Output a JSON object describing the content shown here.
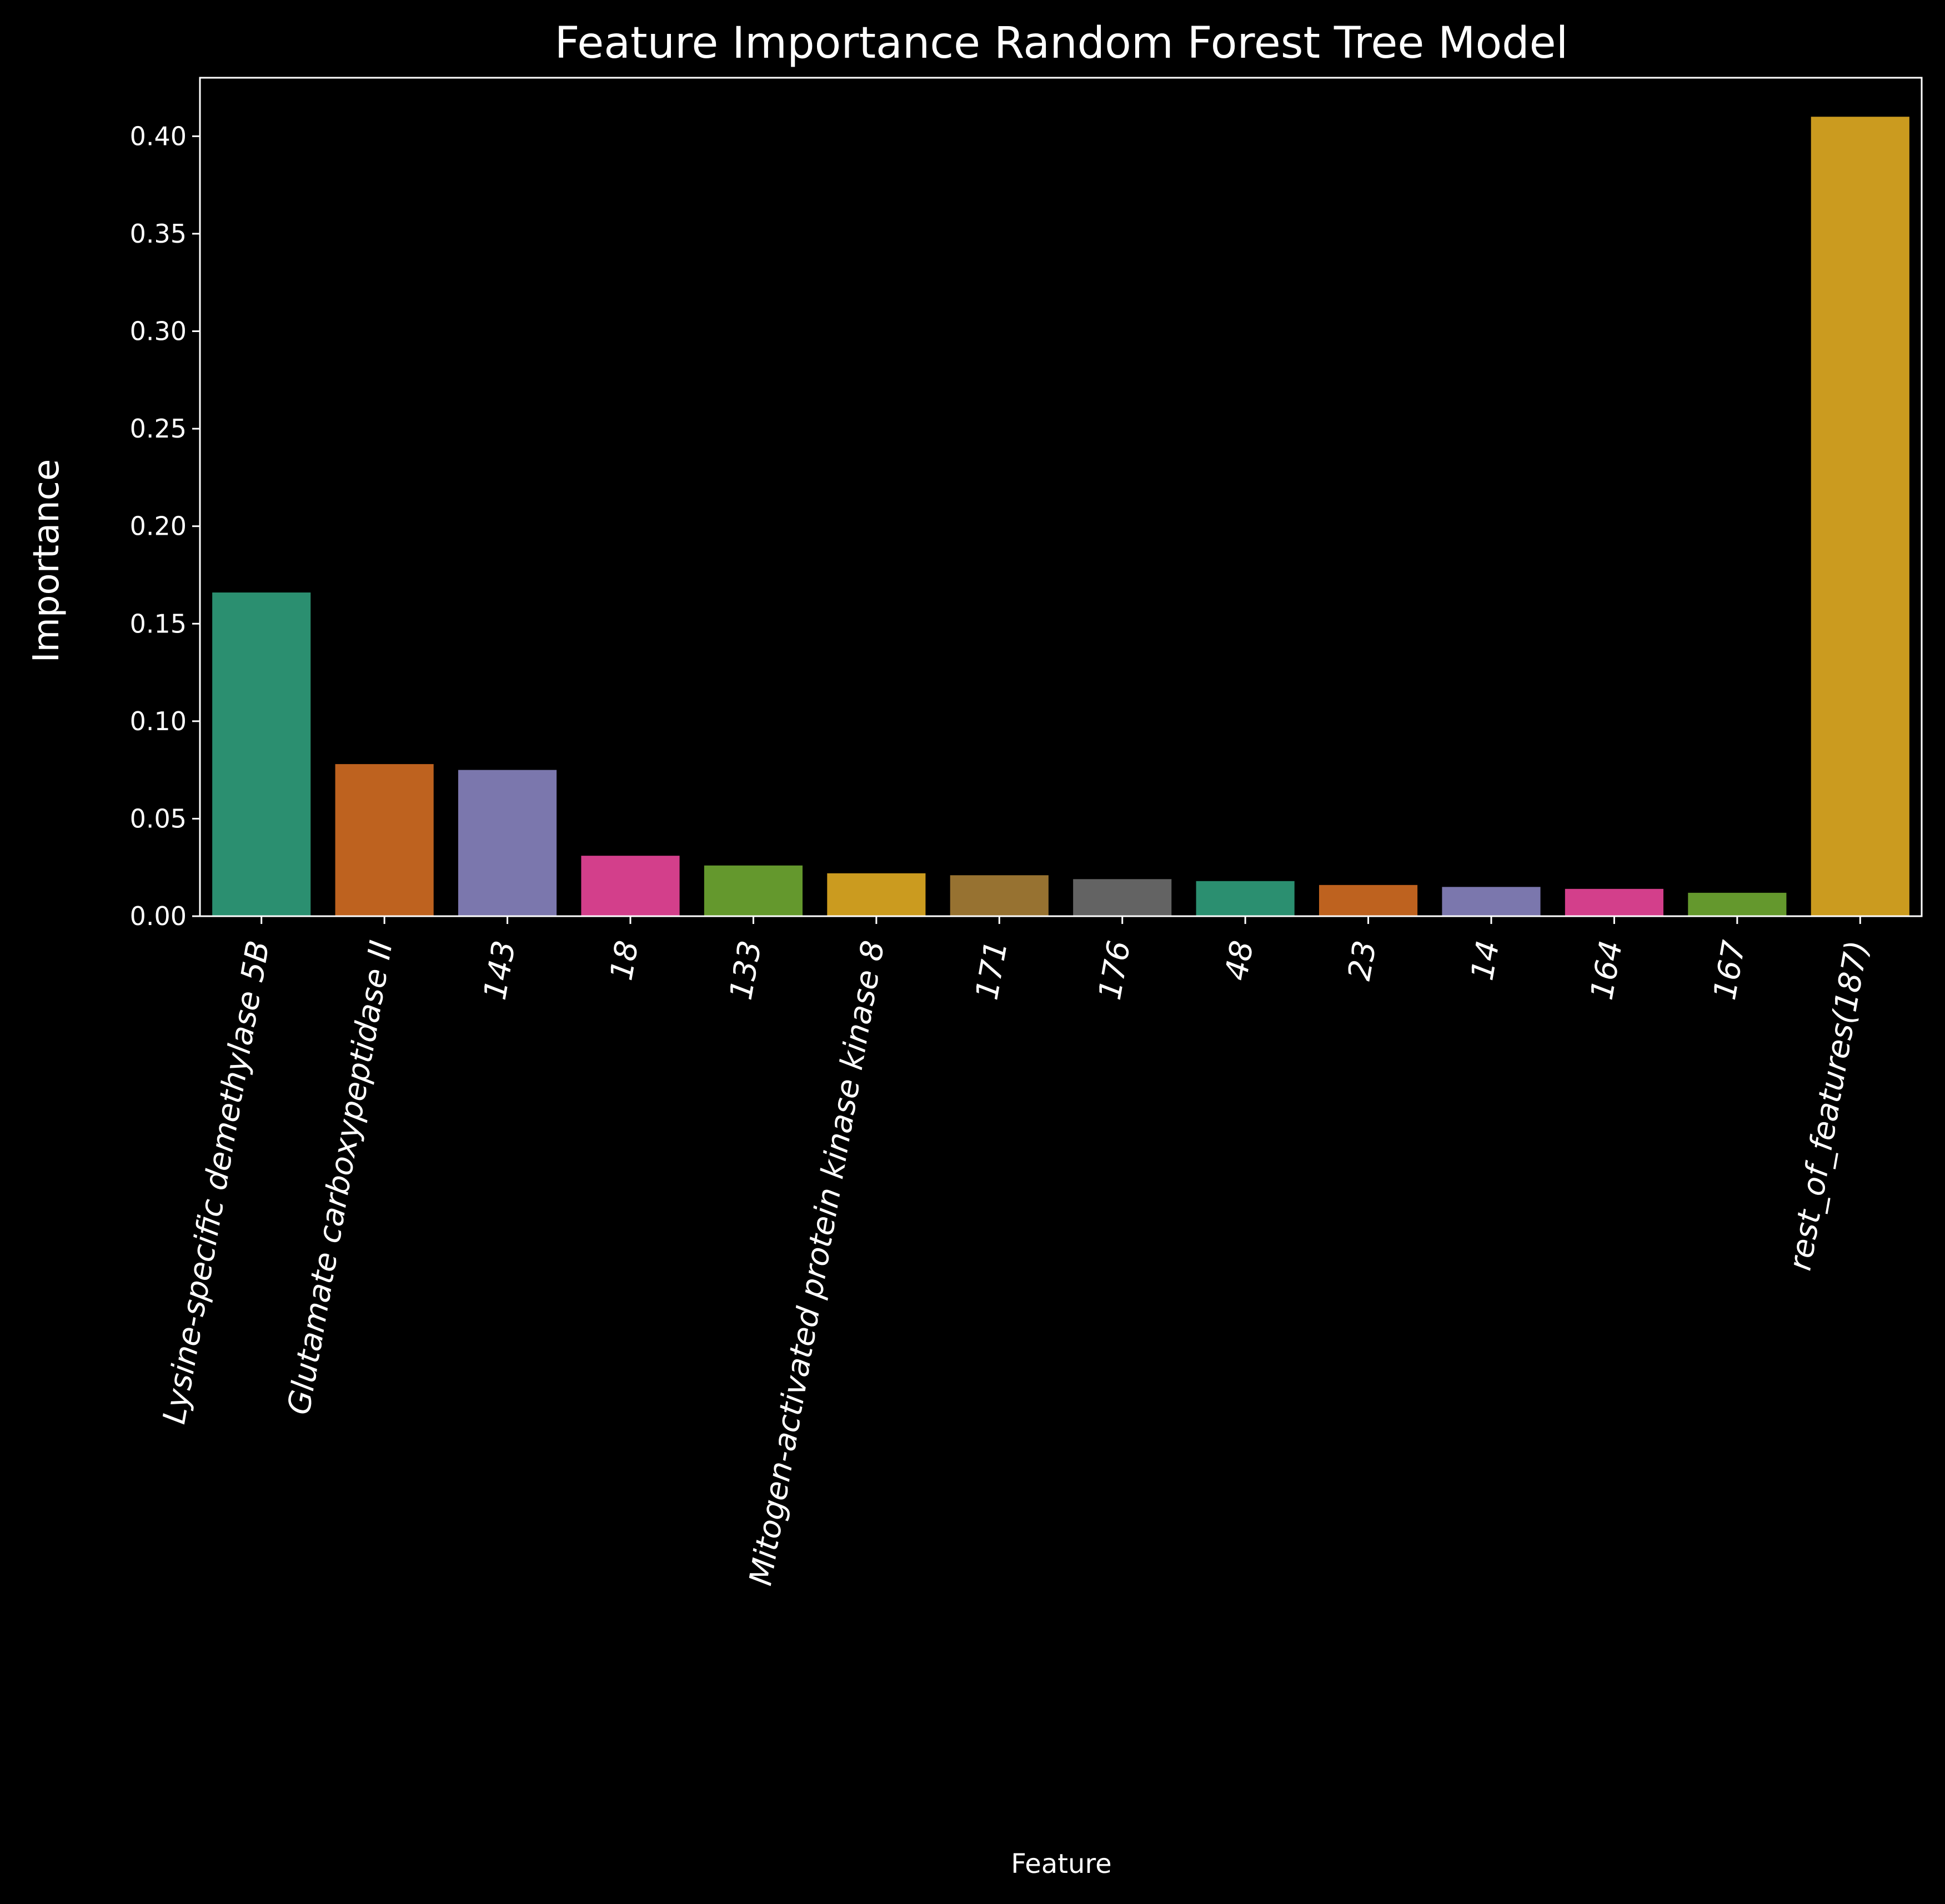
{
  "chart_data": {
    "type": "bar",
    "title": "Feature Importance Random Forest Tree Model",
    "xlabel": "Feature",
    "ylabel": "Importance",
    "ylim": [
      0,
      0.43
    ],
    "yticks": [
      "0.00",
      "0.05",
      "0.10",
      "0.15",
      "0.20",
      "0.25",
      "0.30",
      "0.35",
      "0.40"
    ],
    "grid": false,
    "legend": "none",
    "categories": [
      "Lysine-specific demethylase 5B",
      "Glutamate carboxypeptidase II",
      "143",
      "18",
      "133",
      "Mitogen-activated protein kinase kinase 8",
      "171",
      "176",
      "48",
      "23",
      "14",
      "164",
      "167",
      "rest_of_features(187)"
    ],
    "values": [
      0.166,
      0.078,
      0.075,
      0.031,
      0.026,
      0.022,
      0.021,
      0.019,
      0.018,
      0.016,
      0.015,
      0.014,
      0.012,
      0.41
    ],
    "colors": [
      "#2b8f70",
      "#be621f",
      "#7b77ad",
      "#d33f8b",
      "#64982d",
      "#cb9b1f",
      "#977231",
      "#636363",
      "#2b8f70",
      "#be621f",
      "#7b77ad",
      "#d33f8b",
      "#64982d",
      "#cb9b1f"
    ]
  }
}
